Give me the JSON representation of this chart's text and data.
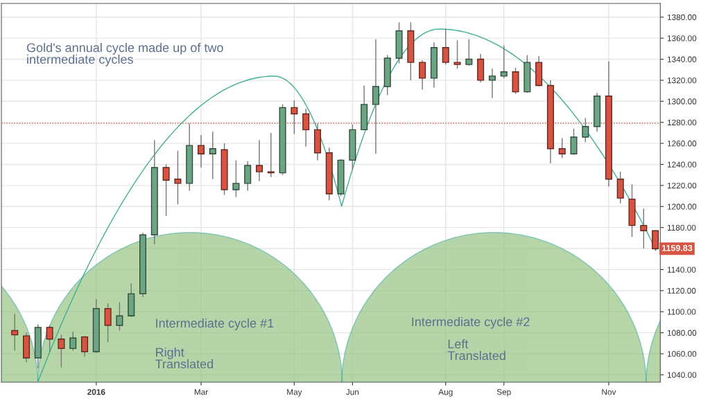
{
  "chart_data": {
    "type": "candlestick",
    "x": [
      "2015-11-16",
      "2015-11-23",
      "2015-11-30",
      "2015-12-07",
      "2015-12-14",
      "2015-12-21",
      "2015-12-28",
      "2016-01-04",
      "2016-01-11",
      "2016-01-18",
      "2016-01-25",
      "2016-02-01",
      "2016-02-08",
      "2016-02-15",
      "2016-02-22",
      "2016-02-29",
      "2016-03-07",
      "2016-03-14",
      "2016-03-21",
      "2016-03-28",
      "2016-04-04",
      "2016-04-11",
      "2016-04-18",
      "2016-04-25",
      "2016-05-02",
      "2016-05-09",
      "2016-05-16",
      "2016-05-23",
      "2016-05-30",
      "2016-06-06",
      "2016-06-13",
      "2016-06-20",
      "2016-06-27",
      "2016-07-04",
      "2016-07-11",
      "2016-07-18",
      "2016-07-25",
      "2016-08-01",
      "2016-08-08",
      "2016-08-15",
      "2016-08-22",
      "2016-08-29",
      "2016-09-05",
      "2016-09-12",
      "2016-09-19",
      "2016-09-26",
      "2016-10-03",
      "2016-10-10",
      "2016-10-17",
      "2016-10-24",
      "2016-10-31",
      "2016-11-07",
      "2016-11-14",
      "2016-11-21",
      "2016-11-28",
      "2016-12-05"
    ],
    "ohlc": [
      [
        1082,
        1098,
        1063,
        1078
      ],
      [
        1077,
        1080,
        1052,
        1056
      ],
      [
        1056,
        1088,
        1046,
        1085
      ],
      [
        1085,
        1087,
        1062,
        1074
      ],
      [
        1074,
        1078,
        1047,
        1065
      ],
      [
        1065,
        1081,
        1063,
        1075
      ],
      [
        1076,
        1077,
        1057,
        1062
      ],
      [
        1062,
        1112,
        1061,
        1103
      ],
      [
        1103,
        1108,
        1071,
        1087
      ],
      [
        1087,
        1109,
        1082,
        1096
      ],
      [
        1096,
        1127,
        1095,
        1117
      ],
      [
        1117,
        1175,
        1114,
        1173
      ],
      [
        1173,
        1263,
        1164,
        1237
      ],
      [
        1237,
        1240,
        1191,
        1225
      ],
      [
        1226,
        1253,
        1202,
        1222
      ],
      [
        1222,
        1279,
        1215,
        1258
      ],
      [
        1258,
        1268,
        1237,
        1250
      ],
      [
        1250,
        1271,
        1226,
        1255
      ],
      [
        1254,
        1260,
        1211,
        1216
      ],
      [
        1216,
        1244,
        1209,
        1222
      ],
      [
        1222,
        1243,
        1215,
        1239
      ],
      [
        1239,
        1263,
        1224,
        1233
      ],
      [
        1233,
        1270,
        1228,
        1232
      ],
      [
        1232,
        1297,
        1230,
        1294
      ],
      [
        1294,
        1301,
        1269,
        1288
      ],
      [
        1288,
        1293,
        1257,
        1273
      ],
      [
        1273,
        1279,
        1244,
        1251
      ],
      [
        1251,
        1256,
        1206,
        1212
      ],
      [
        1212,
        1245,
        1210,
        1244
      ],
      [
        1244,
        1278,
        1235,
        1273
      ],
      [
        1273,
        1315,
        1273,
        1297
      ],
      [
        1297,
        1359,
        1250,
        1314
      ],
      [
        1314,
        1344,
        1306,
        1341
      ],
      [
        1341,
        1375,
        1336,
        1367
      ],
      [
        1367,
        1375,
        1320,
        1337
      ],
      [
        1337,
        1339,
        1311,
        1322
      ],
      [
        1322,
        1356,
        1313,
        1351
      ],
      [
        1351,
        1369,
        1335,
        1337
      ],
      [
        1337,
        1358,
        1331,
        1335
      ],
      [
        1335,
        1359,
        1334,
        1340
      ],
      [
        1340,
        1345,
        1318,
        1320
      ],
      [
        1320,
        1331,
        1303,
        1324
      ],
      [
        1324,
        1353,
        1322,
        1328
      ],
      [
        1328,
        1332,
        1307,
        1309
      ],
      [
        1309,
        1344,
        1308,
        1337
      ],
      [
        1337,
        1343,
        1314,
        1315
      ],
      [
        1315,
        1320,
        1241,
        1255
      ],
      [
        1255,
        1265,
        1246,
        1250
      ],
      [
        1250,
        1274,
        1249,
        1266
      ],
      [
        1266,
        1284,
        1261,
        1276
      ],
      [
        1276,
        1308,
        1271,
        1305
      ],
      [
        1305,
        1338,
        1219,
        1226
      ],
      [
        1226,
        1233,
        1203,
        1208
      ],
      [
        1207,
        1221,
        1171,
        1182
      ],
      [
        1182,
        1198,
        1160,
        1177
      ],
      [
        1177,
        1177,
        1158,
        1159.83
      ]
    ],
    "colors": [
      "#d75442",
      "#d75442",
      "#6ba583",
      "#d75442",
      "#d75442",
      "#6ba583",
      "#d75442",
      "#6ba583",
      "#d75442",
      "#6ba583",
      "#6ba583",
      "#6ba583",
      "#6ba583",
      "#d75442",
      "#d75442",
      "#6ba583",
      "#d75442",
      "#6ba583",
      "#d75442",
      "#6ba583",
      "#6ba583",
      "#d75442",
      "#d75442",
      "#6ba583",
      "#d75442",
      "#d75442",
      "#d75442",
      "#d75442",
      "#6ba583",
      "#6ba583",
      "#6ba583",
      "#6ba583",
      "#6ba583",
      "#6ba583",
      "#d75442",
      "#d75442",
      "#6ba583",
      "#d75442",
      "#d75442",
      "#6ba583",
      "#d75442",
      "#6ba583",
      "#6ba583",
      "#d75442",
      "#6ba583",
      "#d75442",
      "#d75442",
      "#d75442",
      "#6ba583",
      "#6ba583",
      "#6ba583",
      "#d75442",
      "#d75442",
      "#d75442",
      "#d75442",
      "#d75442"
    ],
    "xlim": [
      "2015-11-08",
      "2016-12-08"
    ],
    "xticks": [
      {
        "value": "2016-01-04",
        "label": "2016"
      },
      {
        "value": "2016-03-07",
        "label": "Mar"
      },
      {
        "value": "2016-05-02",
        "label": "May"
      },
      {
        "value": "2016-06-06",
        "label": "Jun"
      },
      {
        "value": "2016-08-01",
        "label": "Aug"
      },
      {
        "value": "2016-09-05",
        "label": "Sep"
      },
      {
        "value": "2016-11-07",
        "label": "Nov"
      }
    ],
    "ylim": [
      1033,
      1393
    ],
    "yticks": [
      {
        "value": 1040,
        "label": "1040.00"
      },
      {
        "value": 1060,
        "label": "1060.00"
      },
      {
        "value": 1080,
        "label": "1080.00"
      },
      {
        "value": 1100,
        "label": "1100.00"
      },
      {
        "value": 1120,
        "label": "1120.00"
      },
      {
        "value": 1140,
        "label": "1140.00"
      },
      {
        "value": 1160,
        "label": null
      },
      {
        "value": 1180,
        "label": "1180.00"
      },
      {
        "value": 1200,
        "label": "1200.00"
      },
      {
        "value": 1220,
        "label": "1220.00"
      },
      {
        "value": 1240,
        "label": "1240.00"
      },
      {
        "value": 1260,
        "label": "1260.00"
      },
      {
        "value": 1280,
        "label": "1280.00"
      },
      {
        "value": 1300,
        "label": "1300.00"
      },
      {
        "value": 1320,
        "label": "1320.00"
      },
      {
        "value": 1340,
        "label": "1340.00"
      },
      {
        "value": 1360,
        "label": "1360.00"
      },
      {
        "value": 1380,
        "label": "1380.00"
      }
    ],
    "grid": true,
    "ref_lines": [
      {
        "axis": "y",
        "value": 1279,
        "color": "#e06050",
        "line_style": "dotted"
      }
    ],
    "annotations": [
      "Gold's annual cycle made up of two\nintermediate cycles",
      "Intermediate cycle #1",
      "Right\nTranslated",
      "Intermediate cycle #2",
      "Left\nTranslated",
      "1159.83"
    ]
  }
}
